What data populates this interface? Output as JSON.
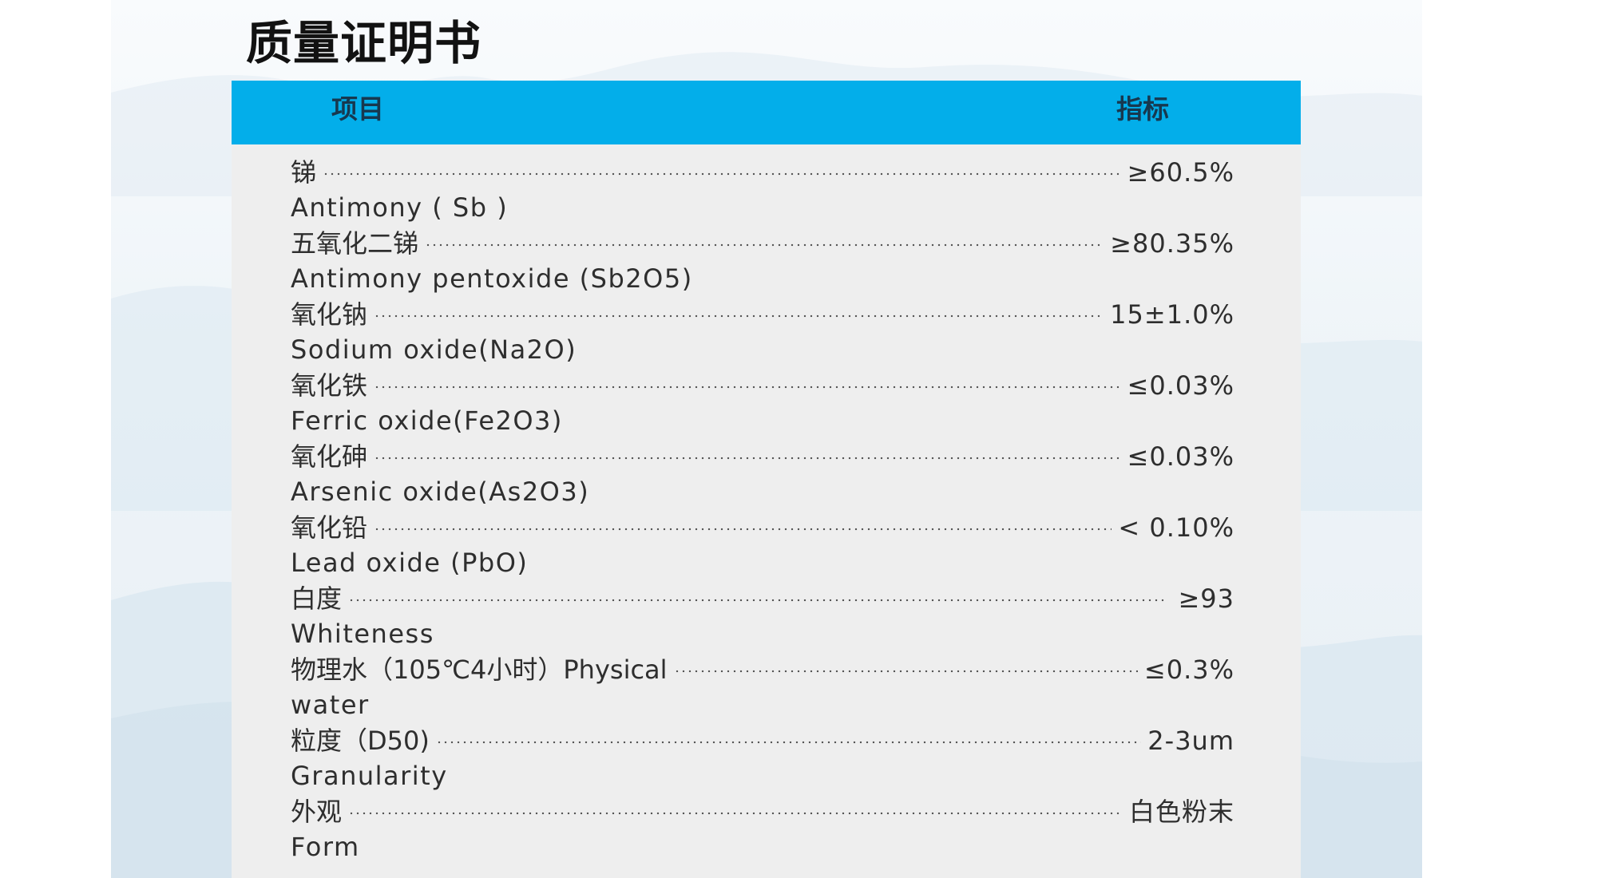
{
  "document": {
    "title": "质量证明书",
    "header": {
      "item": "项目",
      "indicator": "指标"
    },
    "rows": [
      {
        "chinese": "锑",
        "english": "Antimony ( Sb )",
        "value": "≥60.5%"
      },
      {
        "chinese": "五氧化二锑",
        "english": "Antimony pentoxide (Sb2O5)",
        "value": "≥80.35%"
      },
      {
        "chinese": "氧化钠",
        "english": "Sodium oxide(Na2O)",
        "value": "15±1.0%"
      },
      {
        "chinese": "氧化铁",
        "english": "Ferric oxide(Fe2O3)",
        "value": "≤0.03%"
      },
      {
        "chinese": "氧化砷",
        "english": "Arsenic oxide(As2O3)",
        "value": "≤0.03%"
      },
      {
        "chinese": "氧化铅",
        "english": "Lead oxide (PbO)",
        "value": "< 0.10%"
      },
      {
        "chinese": "白度",
        "english": "Whiteness",
        "value": "≥93"
      },
      {
        "chinese": "物理水（105℃4小时）Physical",
        "english": "water",
        "value": "≤0.3%"
      },
      {
        "chinese": "粒度（D50)",
        "english": "Granularity",
        "value": "2-3um"
      },
      {
        "chinese": "外观",
        "english": "Form",
        "value": "白色粉末"
      }
    ]
  },
  "colors": {
    "header_band": "#03AEEA",
    "sheet_background": "#EEEEEE",
    "title_text": "#121212",
    "body_text": "#2E2E2E"
  }
}
